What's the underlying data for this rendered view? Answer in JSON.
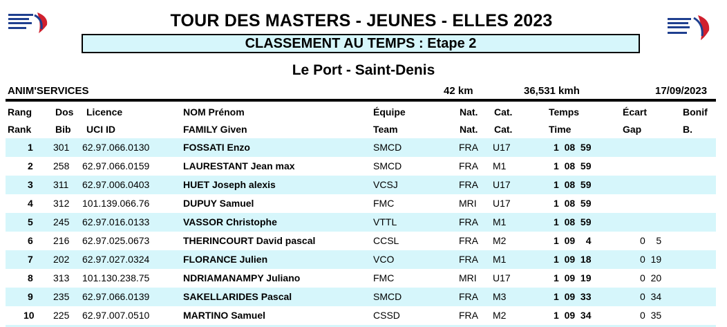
{
  "header": {
    "title": "TOUR DES MASTERS - JEUNES - ELLES 2023",
    "subtitle": "CLASSEMENT AU TEMPS : Etape 2",
    "venue": "Le Port - Saint-Denis"
  },
  "info": {
    "organizer": "ANIM'SERVICES",
    "distance": "42 km",
    "speed": "36,531 kmh",
    "date": "17/09/2023"
  },
  "columns": {
    "fr": [
      "Rang",
      "Dos",
      "Licence",
      "NOM Prénom",
      "Équipe",
      "Nat.",
      "Cat.",
      "Temps",
      "Écart",
      "Bonif"
    ],
    "en": [
      "Rank",
      "Bib",
      "UCI ID",
      "FAMILY Given",
      "Team",
      "Nat.",
      "Cat.",
      "Time",
      "Gap",
      "B."
    ]
  },
  "rows": [
    {
      "rank": "1",
      "bib": "301",
      "licence": "62.97.066.0130",
      "name": "FOSSATI Enzo",
      "team": "SMCD",
      "nat": "FRA",
      "cat": "U17",
      "time": "1  08  59",
      "gap": ""
    },
    {
      "rank": "2",
      "bib": "258",
      "licence": "62.97.066.0159",
      "name": "LAURESTANT Jean max",
      "team": "SMCD",
      "nat": "FRA",
      "cat": "M1",
      "time": "1  08  59",
      "gap": ""
    },
    {
      "rank": "3",
      "bib": "311",
      "licence": "62.97.006.0403",
      "name": "HUET Joseph alexis",
      "team": "VCSJ",
      "nat": "FRA",
      "cat": "U17",
      "time": "1  08  59",
      "gap": ""
    },
    {
      "rank": "4",
      "bib": "312",
      "licence": "101.139.066.76",
      "name": "DUPUY Samuel",
      "team": "FMC",
      "nat": "MRI",
      "cat": "U17",
      "time": "1  08  59",
      "gap": ""
    },
    {
      "rank": "5",
      "bib": "245",
      "licence": "62.97.016.0133",
      "name": "VASSOR Christophe",
      "team": "VTTL",
      "nat": "FRA",
      "cat": "M1",
      "time": "1  08  59",
      "gap": ""
    },
    {
      "rank": "6",
      "bib": "216",
      "licence": "62.97.025.0673",
      "name": "THERINCOURT David pascal",
      "team": "CCSL",
      "nat": "FRA",
      "cat": "M2",
      "time": "1  09    4",
      "gap": "0    5"
    },
    {
      "rank": "7",
      "bib": "202",
      "licence": "62.97.027.0324",
      "name": "FLORANCE Julien",
      "team": "VCO",
      "nat": "FRA",
      "cat": "M1",
      "time": "1  09  18",
      "gap": "0  19"
    },
    {
      "rank": "8",
      "bib": "313",
      "licence": "101.130.238.75",
      "name": "NDRIAMANAMPY Juliano",
      "team": "FMC",
      "nat": "MRI",
      "cat": "U17",
      "time": "1  09  19",
      "gap": "0  20"
    },
    {
      "rank": "9",
      "bib": "235",
      "licence": "62.97.066.0139",
      "name": "SAKELLARIDES Pascal",
      "team": "SMCD",
      "nat": "FRA",
      "cat": "M3",
      "time": "1  09  33",
      "gap": "0  34"
    },
    {
      "rank": "10",
      "bib": "225",
      "licence": "62.97.007.0510",
      "name": "MARTINO Samuel",
      "team": "CSSD",
      "nat": "FRA",
      "cat": "M2",
      "time": "1  09  34",
      "gap": "0  35"
    }
  ],
  "colors": {
    "stripe": "#d6f6fb",
    "logo_blue": "#1f3f8f",
    "logo_red": "#d0202e"
  }
}
